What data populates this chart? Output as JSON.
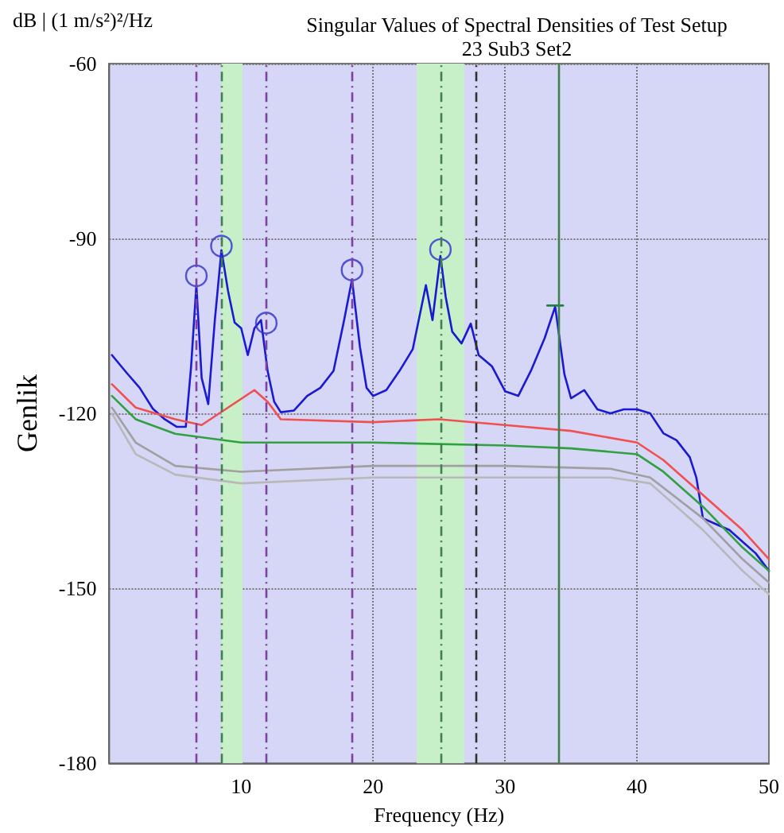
{
  "chart_data": {
    "type": "line",
    "title": "Singular Values of Spectral Densities of Test Setup",
    "subtitle": "23 Sub3 Set2",
    "xlabel": "Frequency (Hz)",
    "ylabel": "Genlik",
    "annotations": [
      "dB | (1 m/s²)²/Hz"
    ],
    "xlim": [
      0,
      50
    ],
    "xticks": [
      10,
      20,
      30,
      40,
      50
    ],
    "ylim": [
      -180,
      -60
    ],
    "yticks": [
      -180,
      -150,
      -120,
      -90,
      -60
    ],
    "grid": true,
    "marker": "none",
    "line_style": "solid",
    "series": [
      {
        "color": "#1a1ad0",
        "x": [
          0.2,
          1.3,
          2.3,
          3.3,
          4.2,
          5.1,
          5.8,
          6.2,
          6.6,
          7.0,
          7.5,
          8.0,
          8.5,
          9.0,
          9.5,
          10.0,
          10.5,
          11.0,
          11.5,
          12.0,
          12.5,
          13,
          14,
          15,
          16,
          17,
          17.8,
          18.4,
          19,
          19.5,
          20,
          21,
          22,
          23,
          24,
          24.5,
          25.1,
          25.5,
          26,
          26.7,
          27.4,
          28,
          29,
          30,
          31,
          32,
          33,
          33.8,
          34.5,
          35,
          36,
          37,
          38,
          39,
          40,
          41,
          42,
          43,
          44,
          44.5,
          45,
          46,
          47,
          48,
          49,
          50
        ],
        "values": [
          -110,
          -113,
          -115.6,
          -119.2,
          -121,
          -122.3,
          -122.3,
          -112,
          -98,
          -113.9,
          -118.4,
          -104,
          -92,
          -99,
          -104.4,
          -105.4,
          -110,
          -105.4,
          -104,
          -112.7,
          -118,
          -119.8,
          -119.5,
          -117,
          -115.6,
          -112.7,
          -104,
          -97,
          -108.6,
          -115.6,
          -117,
          -116,
          -112.7,
          -109,
          -98,
          -104,
          -93,
          -100,
          -106,
          -108,
          -104.6,
          -110,
          -111.9,
          -116.2,
          -117,
          -112.5,
          -107.1,
          -101.7,
          -113.3,
          -117.4,
          -116,
          -119.3,
          -120,
          -119.3,
          -119.3,
          -120,
          -123.4,
          -124.6,
          -127.5,
          -131,
          -138,
          -139,
          -140,
          -142,
          -144,
          -147
        ]
      },
      {
        "color": "#f05050",
        "x": [
          0.2,
          2,
          5,
          7,
          9,
          11,
          12,
          13,
          20,
          25,
          30,
          35,
          40,
          42,
          45,
          48,
          50
        ],
        "values": [
          -115,
          -119,
          -121,
          -122,
          -119,
          -116,
          -118,
          -121,
          -121.5,
          -121,
          -122,
          -123,
          -125,
          -128,
          -134,
          -140,
          -145
        ]
      },
      {
        "color": "#30a040",
        "x": [
          0.2,
          2,
          5,
          10,
          20,
          30,
          35,
          40,
          42,
          45,
          48,
          50
        ],
        "values": [
          -117,
          -121,
          -123.5,
          -125,
          -125,
          -125.5,
          -126,
          -127,
          -130,
          -136,
          -143,
          -147
        ]
      },
      {
        "color": "#a0a0a0",
        "x": [
          0.2,
          2,
          5,
          10,
          20,
          30,
          38,
          41,
          45,
          48,
          50
        ],
        "values": [
          -119,
          -125,
          -129,
          -130,
          -129,
          -129,
          -129.5,
          -131,
          -138,
          -145,
          -149
        ]
      },
      {
        "color": "#b8b8b8",
        "x": [
          0.2,
          2,
          5,
          10,
          20,
          30,
          38,
          41,
          45,
          48,
          50
        ],
        "values": [
          -120,
          -127,
          -130.5,
          -132,
          -131,
          -131,
          -131,
          -132,
          -140,
          -147,
          -151
        ]
      },
      {
        "type": "scatter",
        "marker": "circle",
        "color": "#3030d0",
        "x": [
          6.6,
          8.5,
          11.9,
          18.4,
          25.1
        ],
        "values": [
          -96.4,
          -91.3,
          -104.5,
          -95.4,
          -91.9
        ]
      },
      {
        "color": "#208040",
        "x": [
          33.2,
          34.4
        ],
        "values": [
          -101.5,
          -101.5
        ]
      }
    ],
    "ref_lines": [
      {
        "axis": "x",
        "value": 6.6,
        "color": "#8040a0",
        "line_style": "dashed"
      },
      {
        "axis": "x",
        "value": 8.5,
        "color": "#408050",
        "line_style": "dashed"
      },
      {
        "axis": "x",
        "value": 11.9,
        "color": "#8040a0",
        "line_style": "dashed"
      },
      {
        "axis": "x",
        "value": 18.4,
        "color": "#8040a0",
        "line_style": "dashed"
      },
      {
        "axis": "x",
        "value": 25.1,
        "color": "#408050",
        "line_style": "dashed"
      },
      {
        "axis": "x",
        "value": 27.8,
        "color": "#303030",
        "line_style": "dashed"
      },
      {
        "axis": "x",
        "value": 34.0,
        "color": "#408050",
        "line_style": "solid"
      }
    ],
    "bands": [
      {
        "axis": "x",
        "from": 8.5,
        "to": 10.1,
        "color": "#c8f0c8"
      },
      {
        "axis": "x",
        "from": 23.3,
        "to": 26.9,
        "color": "#c8f0c8"
      }
    ]
  }
}
